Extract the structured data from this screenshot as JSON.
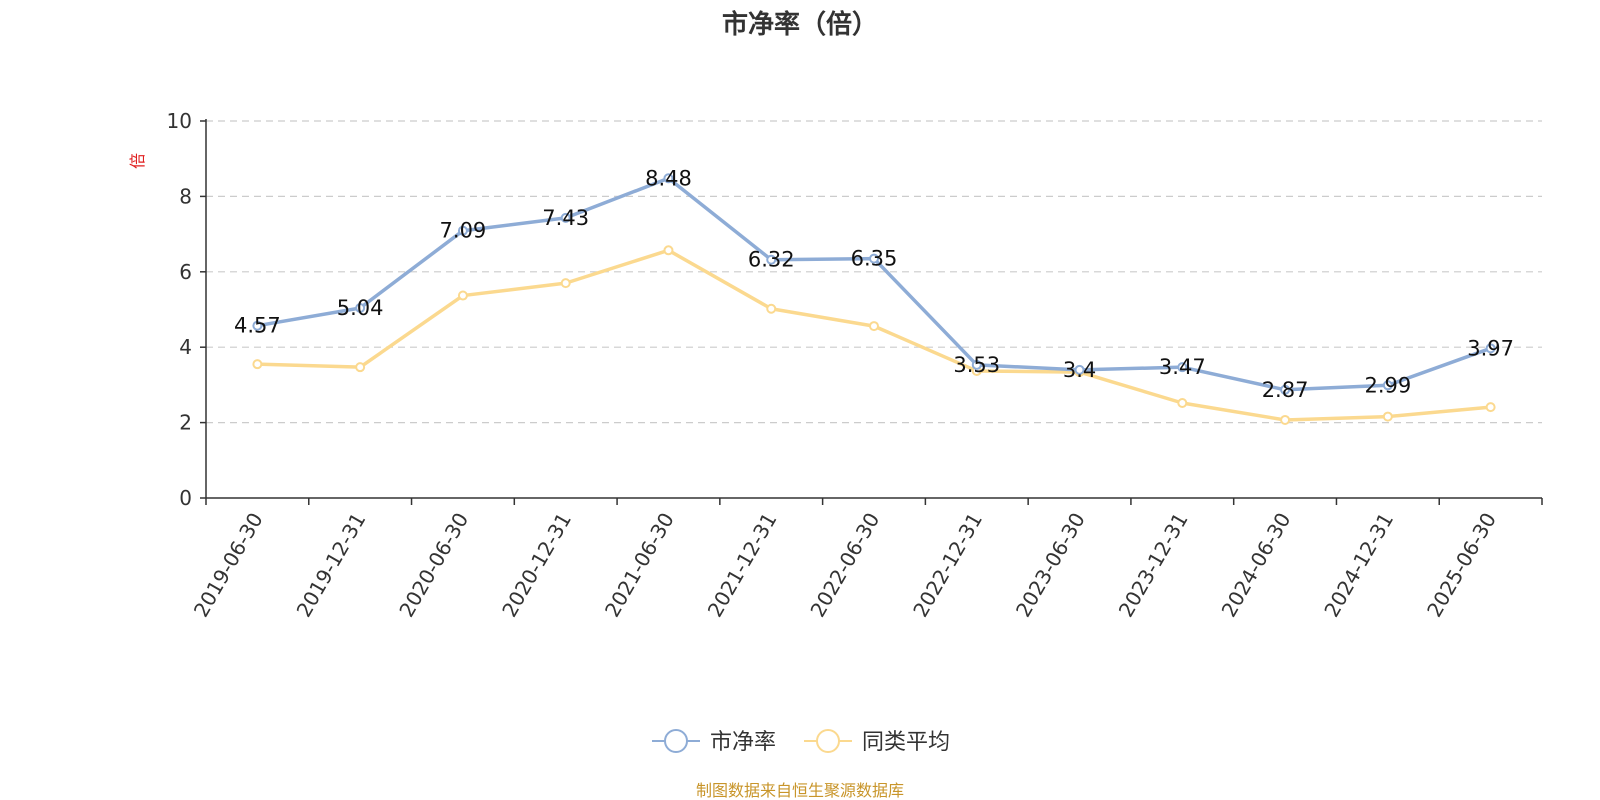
{
  "chart_data": {
    "type": "line",
    "title": "市净率（倍）",
    "ylabel": "倍",
    "xlabel": "",
    "ylim": [
      0,
      10
    ],
    "yticks": [
      0,
      2,
      4,
      6,
      8,
      10
    ],
    "grid": true,
    "legend_position": "bottom-center",
    "categories": [
      "2019-06-30",
      "2019-12-31",
      "2020-06-30",
      "2020-12-31",
      "2021-06-30",
      "2021-12-31",
      "2022-06-30",
      "2022-12-31",
      "2023-06-30",
      "2023-12-31",
      "2024-06-30",
      "2024-12-31",
      "2025-06-30"
    ],
    "series": [
      {
        "name": "市净率",
        "color": "#8eacd6",
        "show_labels": true,
        "values": [
          4.57,
          5.04,
          7.09,
          7.43,
          8.48,
          6.32,
          6.35,
          3.53,
          3.4,
          3.47,
          2.87,
          2.99,
          3.97
        ]
      },
      {
        "name": "同类平均",
        "color": "#fbd98f",
        "show_labels": false,
        "values": [
          3.55,
          3.47,
          5.37,
          5.7,
          6.57,
          5.02,
          4.56,
          3.37,
          3.34,
          2.52,
          2.07,
          2.16,
          2.41
        ]
      }
    ],
    "source": "制图数据来自恒生聚源数据库"
  }
}
